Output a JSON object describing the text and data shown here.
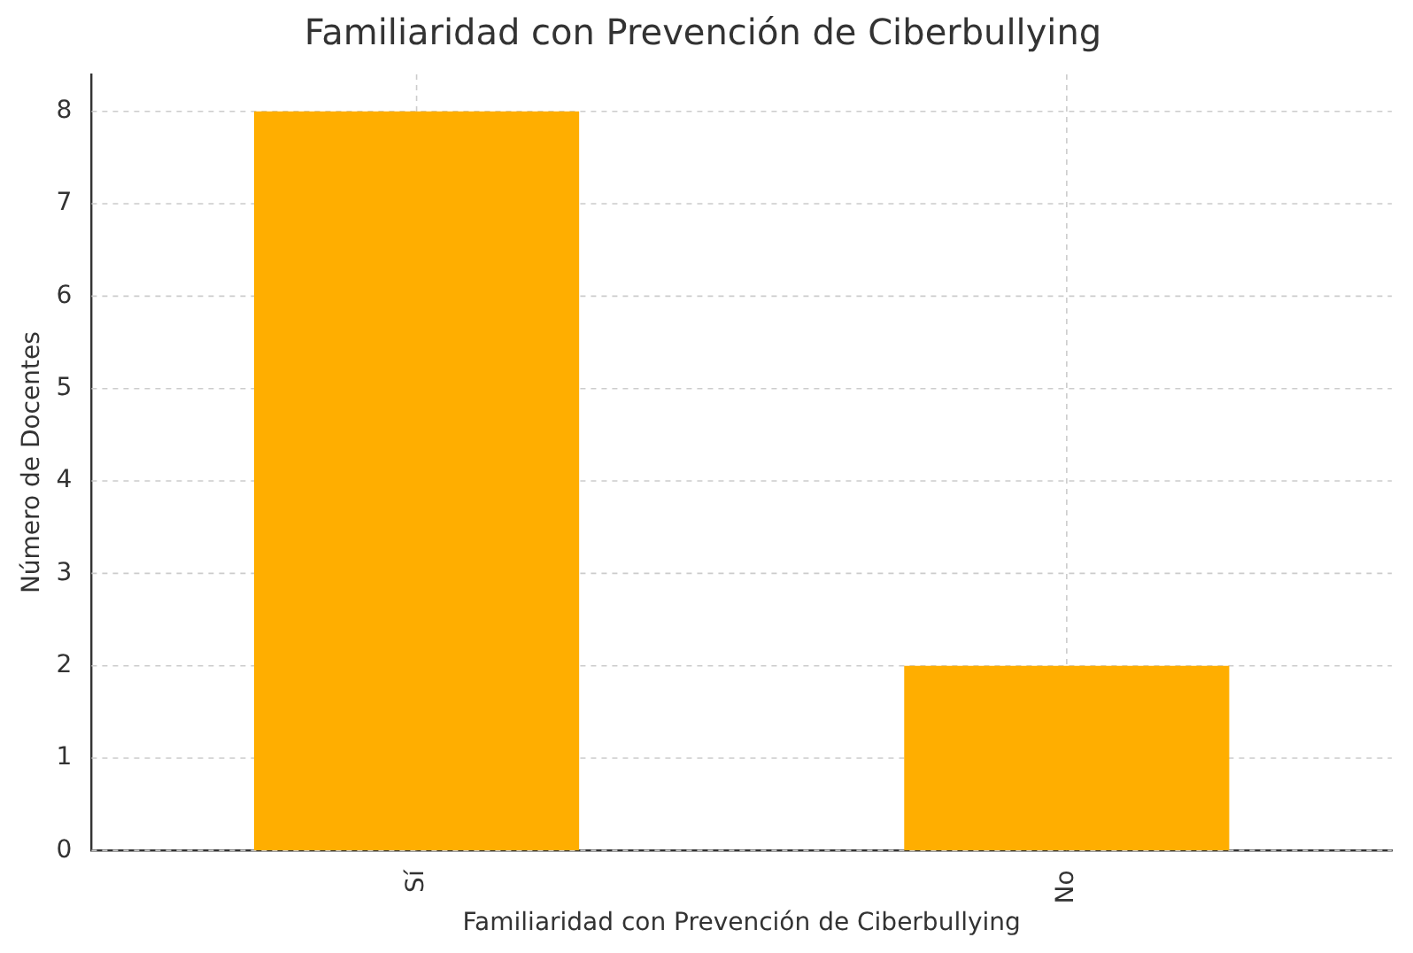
{
  "chart_data": {
    "type": "bar",
    "title": "Familiaridad con Prevención de Ciberbullying",
    "xlabel": "Familiaridad con Prevención de Ciberbullying",
    "ylabel": "Número de Docentes",
    "categories": [
      "Sí",
      "No"
    ],
    "values": [
      8,
      2
    ],
    "color": "#ffae00",
    "ylim": [
      0,
      8.4
    ],
    "yticks": [
      0,
      1,
      2,
      3,
      4,
      5,
      6,
      7,
      8
    ],
    "grid": true
  }
}
